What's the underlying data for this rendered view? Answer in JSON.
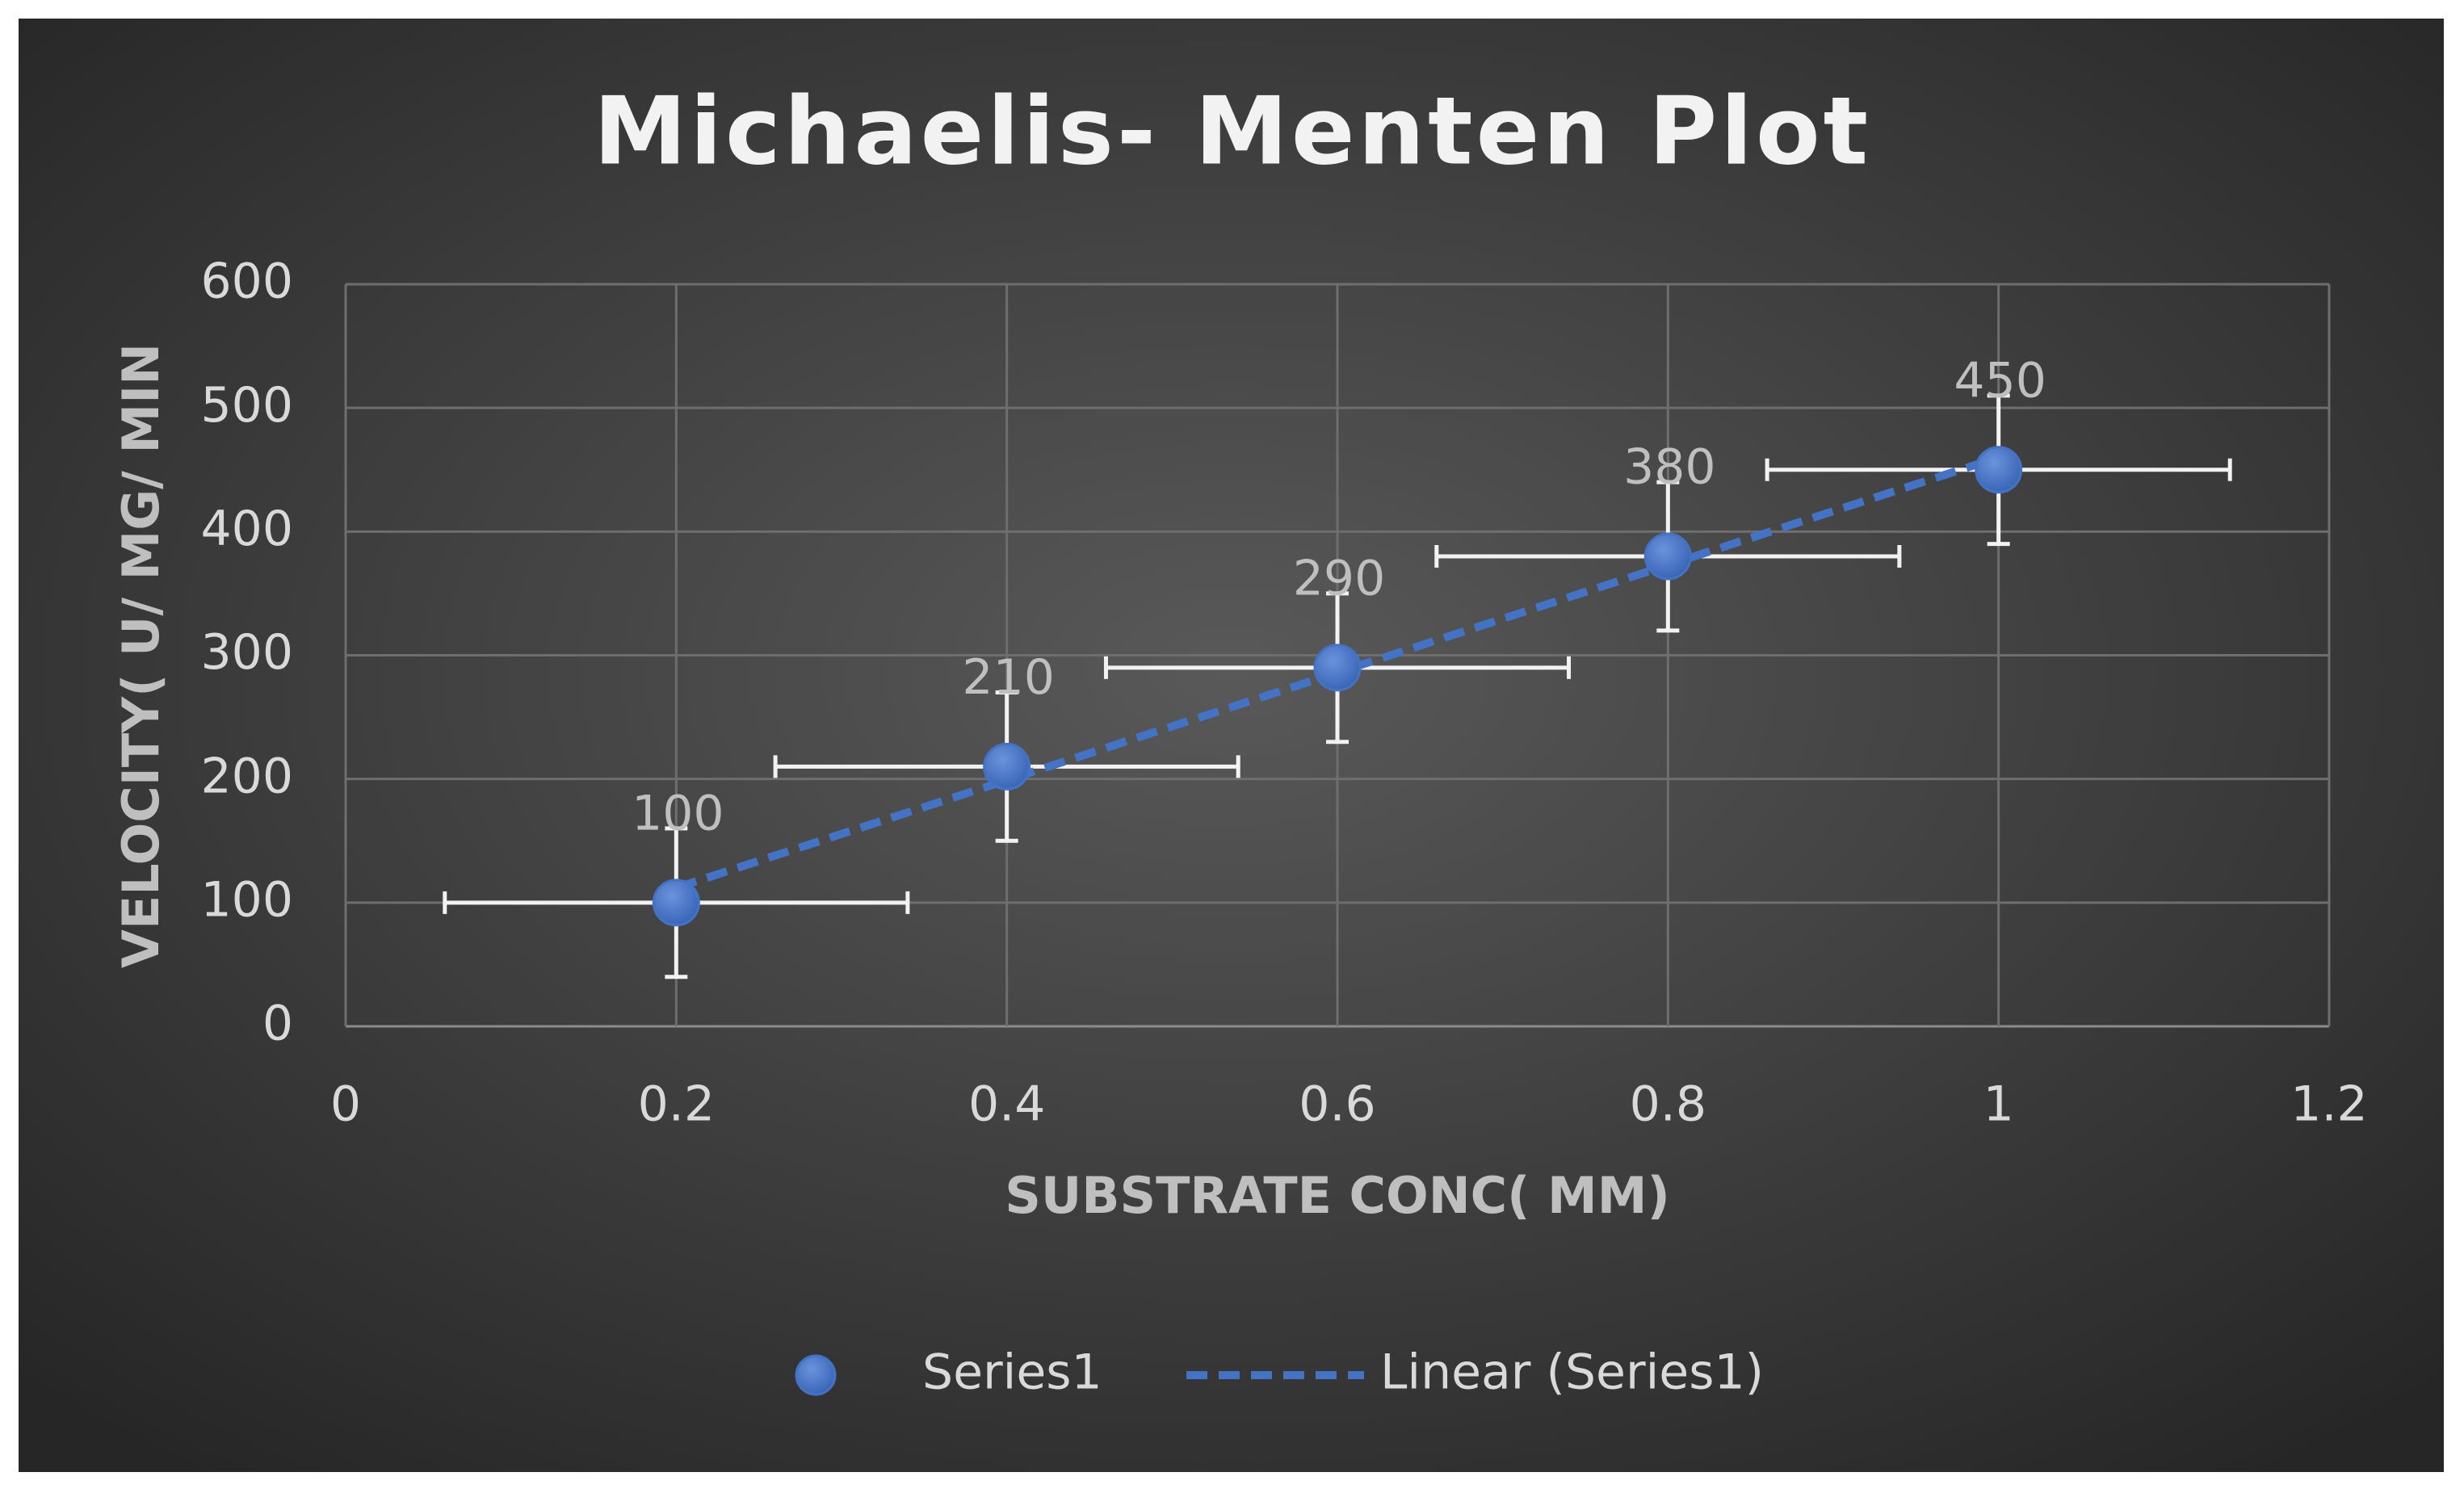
{
  "chart_data": {
    "type": "scatter",
    "title": "Michaelis- Menten Plot",
    "x_label": "SUBSTRATE CONC( MM)",
    "y_label": "VELOCITY( U/ MG/ MIN",
    "series": [
      {
        "name": "Series1",
        "color": "#4472c4",
        "x": [
          0.2,
          0.4,
          0.6,
          0.8,
          1
        ],
        "values": [
          100,
          210,
          290,
          380,
          450
        ],
        "xerr": [
          0.14,
          0.14,
          0.14,
          0.14,
          0.14
        ],
        "yerr": [
          60,
          60,
          60,
          60,
          60
        ]
      },
      {
        "name": "Linear (Series1)",
        "type": "trendline",
        "color": "#4472c4",
        "dash": true,
        "x": [
          0.2,
          1
        ],
        "values": [
          112,
          460
        ]
      }
    ],
    "xlim": [
      0,
      1.2
    ],
    "xticks": [
      0,
      0.2,
      0.4,
      0.6,
      0.8,
      1,
      1.2
    ],
    "ylim": [
      0,
      600
    ],
    "yticks": [
      0,
      100,
      200,
      300,
      400,
      500,
      600
    ],
    "grid": true,
    "legend": "bottom"
  }
}
